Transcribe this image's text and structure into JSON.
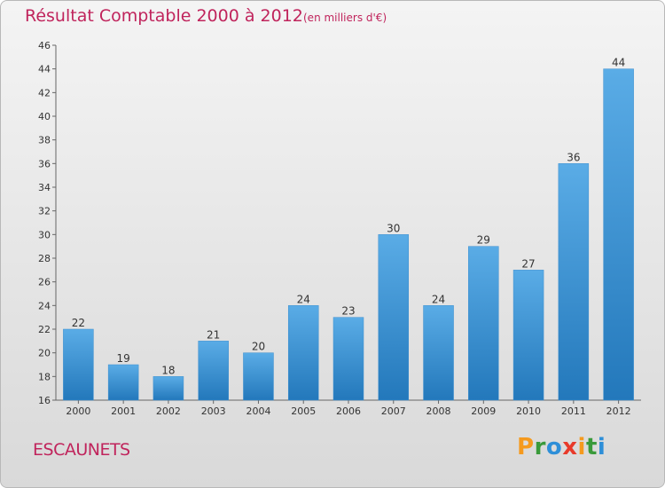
{
  "header": {
    "title": "Résultat Comptable 2000 à 2012",
    "subtitle": "(en milliers d'€)"
  },
  "footer": {
    "commune": "ESCAUNETS",
    "logo_letters": [
      {
        "char": "P",
        "color": "#f59a1e"
      },
      {
        "char": "r",
        "color": "#3a9a3a"
      },
      {
        "char": "o",
        "color": "#2e8fd8"
      },
      {
        "char": "x",
        "color": "#e83a2a"
      },
      {
        "char": "i",
        "color": "#f59a1e"
      },
      {
        "char": "t",
        "color": "#3a9a3a"
      },
      {
        "char": "i",
        "color": "#2e8fd8"
      }
    ]
  },
  "chart_data": {
    "type": "bar",
    "title": "Résultat Comptable 2000 à 2012",
    "categories": [
      "2000",
      "2001",
      "2002",
      "2003",
      "2004",
      "2005",
      "2006",
      "2007",
      "2008",
      "2009",
      "2010",
      "2011",
      "2012"
    ],
    "values": [
      22,
      19,
      18,
      21,
      20,
      24,
      23,
      30,
      24,
      29,
      27,
      36,
      44
    ],
    "ylim": [
      16,
      46
    ],
    "yticks": [
      16,
      18,
      20,
      22,
      24,
      26,
      28,
      30,
      32,
      34,
      36,
      38,
      40,
      42,
      44,
      46
    ],
    "xlabel": "",
    "ylabel": "",
    "grid": false,
    "bar_color_top": "#5aace6",
    "bar_color_bottom": "#2378bb"
  }
}
